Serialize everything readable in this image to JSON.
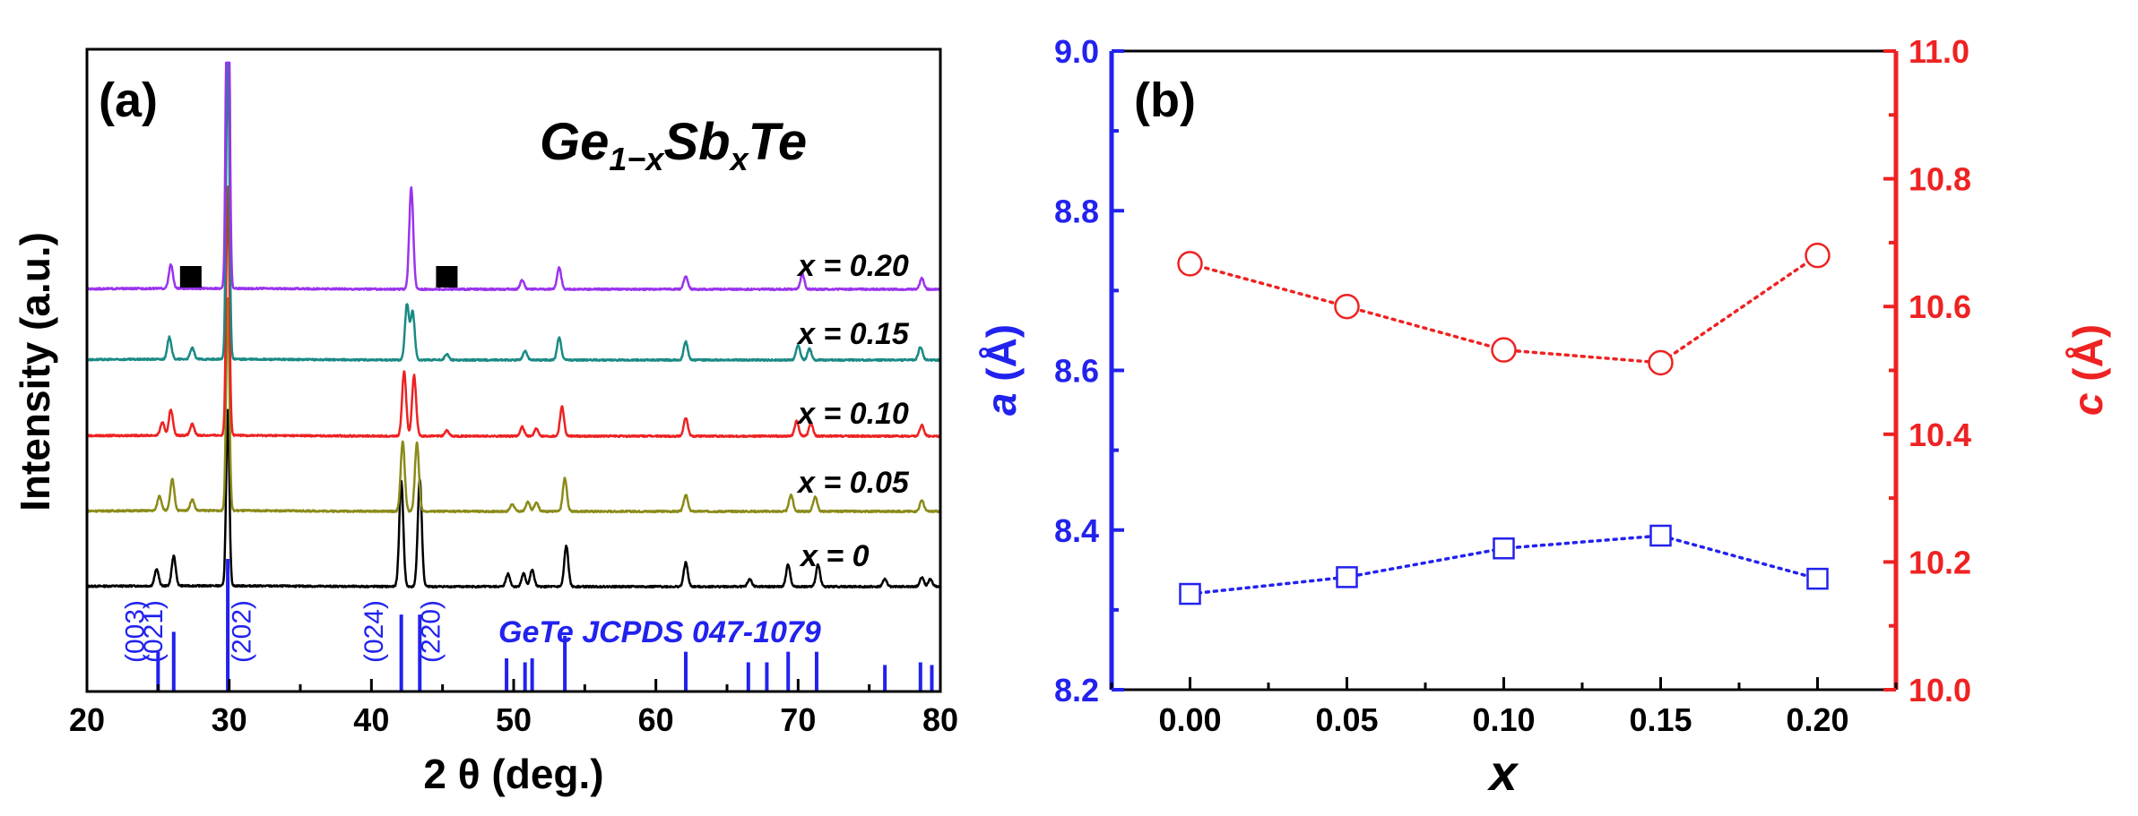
{
  "chart_data": [
    {
      "panel": "(a)",
      "type": "line",
      "title": "Ge1−xSbxTe",
      "title_parts": {
        "base1": "Ge",
        "sub1": "1−x",
        "base2": "Sb",
        "sub2": "x",
        "base3": "Te"
      },
      "xlabel": "2 θ (deg.)",
      "ylabel": "Intensity (a.u.)",
      "xlim": [
        20,
        80
      ],
      "x_ticks": [
        "20",
        "30",
        "40",
        "50",
        "60",
        "70",
        "80"
      ],
      "series": [
        {
          "name": "x = 0",
          "label": "x = 0",
          "color": "#000000",
          "peaks": [
            [
              24.9,
              9
            ],
            [
              26.1,
              16
            ],
            [
              29.9,
              95
            ],
            [
              42.1,
              57
            ],
            [
              43.4,
              58
            ],
            [
              49.6,
              7
            ],
            [
              50.7,
              7
            ],
            [
              51.3,
              9
            ],
            [
              53.7,
              22
            ],
            [
              62.1,
              13
            ],
            [
              66.6,
              4
            ],
            [
              69.3,
              12
            ],
            [
              71.4,
              12
            ],
            [
              76.1,
              4
            ],
            [
              78.7,
              5
            ],
            [
              79.3,
              4
            ]
          ]
        },
        {
          "name": "x = 0.05",
          "label": "x = 0.05",
          "color": "#8b8b1a",
          "peaks": [
            [
              25.1,
              8
            ],
            [
              26.0,
              17
            ],
            [
              27.4,
              6
            ],
            [
              29.9,
              115
            ],
            [
              42.2,
              38
            ],
            [
              43.2,
              37
            ],
            [
              49.9,
              4
            ],
            [
              51.0,
              5
            ],
            [
              51.6,
              5
            ],
            [
              53.6,
              18
            ],
            [
              62.1,
              9
            ],
            [
              69.5,
              9
            ],
            [
              71.2,
              8
            ],
            [
              78.7,
              6
            ]
          ]
        },
        {
          "name": "x = 0.10",
          "label": "x = 0.10",
          "color": "#ee2222",
          "peaks": [
            [
              25.3,
              7
            ],
            [
              25.9,
              14
            ],
            [
              27.4,
              6
            ],
            [
              29.9,
              135
            ],
            [
              42.3,
              35
            ],
            [
              43.0,
              33
            ],
            [
              45.3,
              3
            ],
            [
              50.6,
              5
            ],
            [
              51.6,
              4
            ],
            [
              53.4,
              16
            ],
            [
              62.1,
              10
            ],
            [
              69.9,
              8
            ],
            [
              70.9,
              7
            ],
            [
              78.7,
              6
            ]
          ]
        },
        {
          "name": "x = 0.15",
          "label": "x = 0.15",
          "color": "#1a8a84",
          "peaks": [
            [
              25.8,
              12
            ],
            [
              27.4,
              6
            ],
            [
              29.9,
              170
            ],
            [
              42.5,
              30
            ],
            [
              42.9,
              26
            ],
            [
              45.3,
              3
            ],
            [
              50.8,
              5
            ],
            [
              53.2,
              12
            ],
            [
              62.1,
              10
            ],
            [
              70.0,
              8
            ],
            [
              70.8,
              6
            ],
            [
              78.6,
              7
            ]
          ]
        },
        {
          "name": "x = 0.20",
          "label": "x = 0.20",
          "color": "#9a33ee",
          "peaks": [
            [
              25.9,
              13
            ],
            [
              29.9,
              250
            ],
            [
              42.8,
              55
            ],
            [
              50.6,
              5
            ],
            [
              53.2,
              12
            ],
            [
              62.1,
              7
            ],
            [
              70.3,
              8
            ],
            [
              78.7,
              6
            ]
          ]
        }
      ],
      "markers": {
        "symbol": "square",
        "x": [
          27.3,
          45.3
        ],
        "series": "x = 0.20"
      },
      "reference": {
        "label": "GeTe JCPDS 047-1079",
        "lines": [
          {
            "x": 25.0,
            "height": 0.3
          },
          {
            "x": 26.1,
            "height": 0.45
          },
          {
            "x": 29.9,
            "height": 1.0
          },
          {
            "x": 42.1,
            "height": 0.58
          },
          {
            "x": 43.4,
            "height": 0.58
          },
          {
            "x": 49.5,
            "height": 0.25
          },
          {
            "x": 50.8,
            "height": 0.22
          },
          {
            "x": 51.3,
            "height": 0.25
          },
          {
            "x": 53.6,
            "height": 0.42
          },
          {
            "x": 62.1,
            "height": 0.3
          },
          {
            "x": 66.5,
            "height": 0.22
          },
          {
            "x": 67.8,
            "height": 0.22
          },
          {
            "x": 69.3,
            "height": 0.3
          },
          {
            "x": 71.3,
            "height": 0.3
          },
          {
            "x": 76.1,
            "height": 0.2
          },
          {
            "x": 78.6,
            "height": 0.22
          },
          {
            "x": 79.4,
            "height": 0.2
          }
        ],
        "hkl_labels": [
          {
            "text": "(003)",
            "x": 24.0
          },
          {
            "text": "(021)",
            "x": 25.3
          },
          {
            "text": "(202)",
            "x": 31.5
          },
          {
            "text": "(024)",
            "x": 40.8
          },
          {
            "text": "(220)",
            "x": 44.8
          }
        ]
      }
    },
    {
      "panel": "(b)",
      "type": "scatter",
      "xlabel": "x",
      "ylabel_left": {
        "symbol": "a",
        "unit": "(Å)"
      },
      "ylabel_right": {
        "symbol": "c",
        "unit": "(Å)"
      },
      "xlim": [
        -0.025,
        0.225
      ],
      "ylim_left": [
        8.2,
        9.0
      ],
      "ylim_right": [
        10.0,
        11.0
      ],
      "x_ticks": [
        "0.00",
        "0.05",
        "0.10",
        "0.15",
        "0.20"
      ],
      "y_ticks_left": [
        "8.2",
        "8.4",
        "8.6",
        "8.8",
        "9.0"
      ],
      "y_ticks_right": [
        "10.0",
        "10.2",
        "10.4",
        "10.6",
        "10.8",
        "11.0"
      ],
      "left_color": "#2222ee",
      "right_color": "#ee2222",
      "series": [
        {
          "name": "a",
          "axis": "left",
          "marker": "square",
          "color": "#2222ee",
          "x": [
            0.0,
            0.05,
            0.1,
            0.15,
            0.2
          ],
          "y": [
            8.32,
            8.341,
            8.377,
            8.393,
            8.339
          ]
        },
        {
          "name": "c",
          "axis": "right",
          "marker": "circle",
          "color": "#ee2222",
          "x": [
            0.0,
            0.05,
            0.1,
            0.15,
            0.2
          ],
          "y": [
            10.667,
            10.6,
            10.532,
            10.512,
            10.68
          ]
        }
      ]
    }
  ]
}
